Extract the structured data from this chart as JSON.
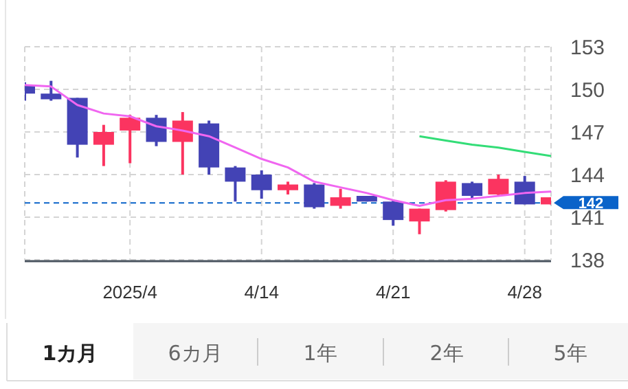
{
  "chart_data": {
    "type": "candlestick",
    "categories": [
      null,
      null,
      null,
      null,
      "2025/4",
      null,
      null,
      null,
      null,
      "4/14",
      null,
      null,
      null,
      null,
      "4/21",
      null,
      null,
      null,
      null,
      "4/28",
      null
    ],
    "ohlc": [
      [
        150.3,
        150.5,
        149.2,
        149.7
      ],
      [
        149.7,
        150.6,
        149.2,
        149.3
      ],
      [
        149.4,
        149.4,
        145.2,
        146.1
      ],
      [
        146.1,
        147.5,
        144.6,
        147.0
      ],
      [
        147.1,
        148.2,
        144.8,
        148.0
      ],
      [
        148.0,
        148.2,
        146.0,
        146.3
      ],
      [
        146.3,
        148.4,
        144.0,
        147.8
      ],
      [
        147.6,
        147.8,
        144.0,
        144.5
      ],
      [
        144.5,
        144.6,
        142.1,
        143.5
      ],
      [
        144.0,
        144.3,
        142.3,
        142.9
      ],
      [
        142.9,
        143.5,
        142.6,
        143.3
      ],
      [
        143.3,
        143.4,
        141.6,
        141.7
      ],
      [
        141.8,
        143.0,
        141.6,
        142.4
      ],
      [
        142.5,
        142.5,
        142.1,
        142.1
      ],
      [
        142.1,
        142.2,
        140.4,
        140.8
      ],
      [
        140.7,
        141.6,
        139.8,
        141.6
      ],
      [
        141.5,
        143.6,
        141.4,
        143.5
      ],
      [
        143.4,
        143.5,
        142.3,
        142.5
      ],
      [
        142.6,
        144.0,
        142.5,
        143.7
      ],
      [
        143.5,
        143.9,
        141.9,
        141.9
      ],
      [
        141.9,
        142.4,
        141.9,
        142.4
      ]
    ],
    "colors": [
      "#4343b5",
      "#4343b5",
      "#4343b5",
      "#fb3460",
      "#fb3460",
      "#4343b5",
      "#fb3460",
      "#4343b5",
      "#4343b5",
      "#4343b5",
      "#fb3460",
      "#4343b5",
      "#fb3460",
      "#4343b5",
      "#4343b5",
      "#fb3460",
      "#fb3460",
      "#4343b5",
      "#fb3460",
      "#4343b5",
      "#fb3460"
    ],
    "series": [
      {
        "type": "line",
        "color": "#f066f0",
        "values": [
          150.3,
          150.2,
          148.9,
          148.3,
          148.1,
          147.4,
          147.1,
          146.7,
          145.9,
          145.1,
          144.5,
          143.5,
          143.1,
          142.7,
          142.2,
          141.8,
          142.2,
          142.3,
          142.5,
          142.7,
          142.8
        ]
      },
      {
        "type": "line",
        "color": "#33dd77",
        "values": [
          null,
          null,
          null,
          null,
          null,
          null,
          null,
          null,
          null,
          null,
          null,
          null,
          null,
          null,
          null,
          146.7,
          146.4,
          146.1,
          145.9,
          145.6,
          145.3
        ]
      }
    ],
    "ylim": [
      138,
      153
    ],
    "yticks": [
      138,
      141,
      144,
      147,
      150,
      153
    ],
    "grid": true,
    "ref_lines": [
      {
        "axis": "y",
        "value": 142,
        "label": "142",
        "color": "#0a63c9",
        "line_style": "dashed"
      }
    ],
    "annotations": [
      "1カ月",
      "6カ月",
      "1年",
      "2年",
      "5年"
    ]
  }
}
